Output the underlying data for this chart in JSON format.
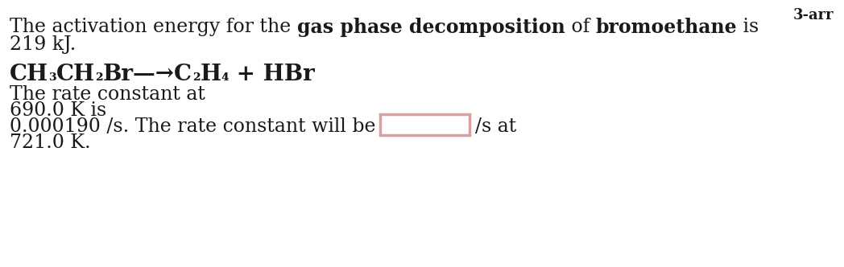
{
  "background_color": "#ffffff",
  "label_top_right": "3-arr",
  "line1_normal1": "The activation energy for the ",
  "line1_bold1": "gas phase decomposition",
  "line1_normal2": " of ",
  "line1_bold2": "bromoethane",
  "line1_normal3": " is",
  "line2": "219 kJ.",
  "line4": "The rate constant at",
  "line5": "690.0 K is",
  "line6_part1": "0.000190 /s. The rate constant will be",
  "line6_part2": "/s at",
  "line7": "721.0 K.",
  "box_color": "#d9a0a0",
  "box_fill": "#ffffff",
  "text_color": "#1a1a1a",
  "font_size_main": 17,
  "font_size_eq": 20,
  "font_size_label": 13,
  "font_family": "DejaVu Serif"
}
